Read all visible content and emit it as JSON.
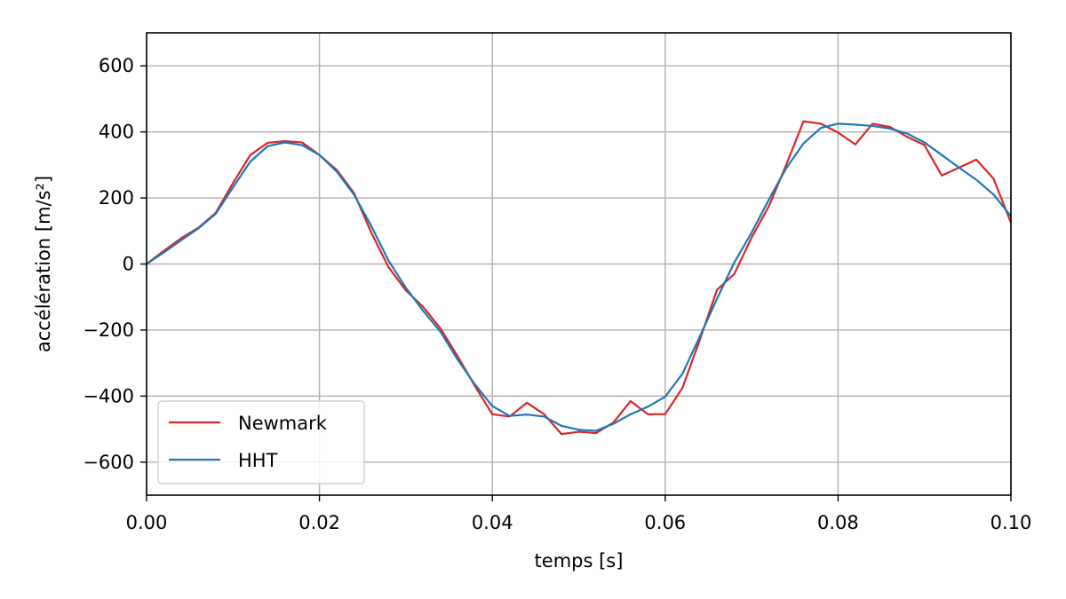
{
  "chart_data": {
    "type": "line",
    "xlabel": "temps [s]",
    "ylabel": "accélération [m/s²]",
    "xlim": [
      0.0,
      0.1
    ],
    "ylim": [
      -700,
      700
    ],
    "xticks": [
      0.0,
      0.02,
      0.04,
      0.06,
      0.08,
      0.1
    ],
    "xtick_labels": [
      "0.00",
      "0.02",
      "0.04",
      "0.06",
      "0.08",
      "0.10"
    ],
    "yticks": [
      -600,
      -400,
      -200,
      0,
      200,
      400,
      600
    ],
    "ytick_labels": [
      "−600",
      "−400",
      "−200",
      "0",
      "200",
      "400",
      "600"
    ],
    "grid": true,
    "legend_position": "lower-left",
    "series": [
      {
        "name": "Newmark",
        "color": "#d62728",
        "x": [
          0.0,
          0.002,
          0.004,
          0.006,
          0.008,
          0.01,
          0.012,
          0.014,
          0.016,
          0.018,
          0.02,
          0.022,
          0.024,
          0.026,
          0.028,
          0.03,
          0.032,
          0.034,
          0.036,
          0.038,
          0.04,
          0.042,
          0.044,
          0.046,
          0.048,
          0.05,
          0.052,
          0.054,
          0.056,
          0.058,
          0.06,
          0.062,
          0.064,
          0.066,
          0.068,
          0.07,
          0.072,
          0.074,
          0.076,
          0.078,
          0.08,
          0.082,
          0.084,
          0.086,
          0.088,
          0.09,
          0.092,
          0.094,
          0.096,
          0.098,
          0.1
        ],
        "y": [
          0,
          40,
          78,
          110,
          155,
          245,
          330,
          367,
          372,
          368,
          330,
          285,
          215,
          95,
          -10,
          -80,
          -130,
          -195,
          -280,
          -370,
          -455,
          -462,
          -420,
          -455,
          -515,
          -508,
          -512,
          -480,
          -415,
          -455,
          -455,
          -375,
          -230,
          -78,
          -30,
          80,
          175,
          300,
          432,
          425,
          398,
          362,
          425,
          415,
          385,
          360,
          268,
          292,
          316,
          258,
          125
        ]
      },
      {
        "name": "HHT",
        "color": "#1f77b4",
        "x": [
          0.0,
          0.002,
          0.004,
          0.006,
          0.008,
          0.01,
          0.012,
          0.014,
          0.016,
          0.018,
          0.02,
          0.022,
          0.024,
          0.026,
          0.028,
          0.03,
          0.032,
          0.034,
          0.036,
          0.038,
          0.04,
          0.042,
          0.044,
          0.046,
          0.048,
          0.05,
          0.052,
          0.054,
          0.056,
          0.058,
          0.06,
          0.062,
          0.064,
          0.066,
          0.068,
          0.07,
          0.072,
          0.074,
          0.076,
          0.078,
          0.08,
          0.082,
          0.084,
          0.086,
          0.088,
          0.09,
          0.092,
          0.094,
          0.096,
          0.098,
          0.1
        ],
        "y": [
          0,
          35,
          72,
          108,
          152,
          232,
          310,
          357,
          368,
          360,
          330,
          280,
          210,
          115,
          10,
          -72,
          -142,
          -205,
          -290,
          -365,
          -430,
          -460,
          -456,
          -462,
          -490,
          -502,
          -505,
          -484,
          -455,
          -432,
          -402,
          -332,
          -220,
          -105,
          5,
          95,
          195,
          290,
          365,
          412,
          425,
          422,
          418,
          410,
          395,
          368,
          330,
          292,
          255,
          210,
          145
        ]
      }
    ]
  }
}
